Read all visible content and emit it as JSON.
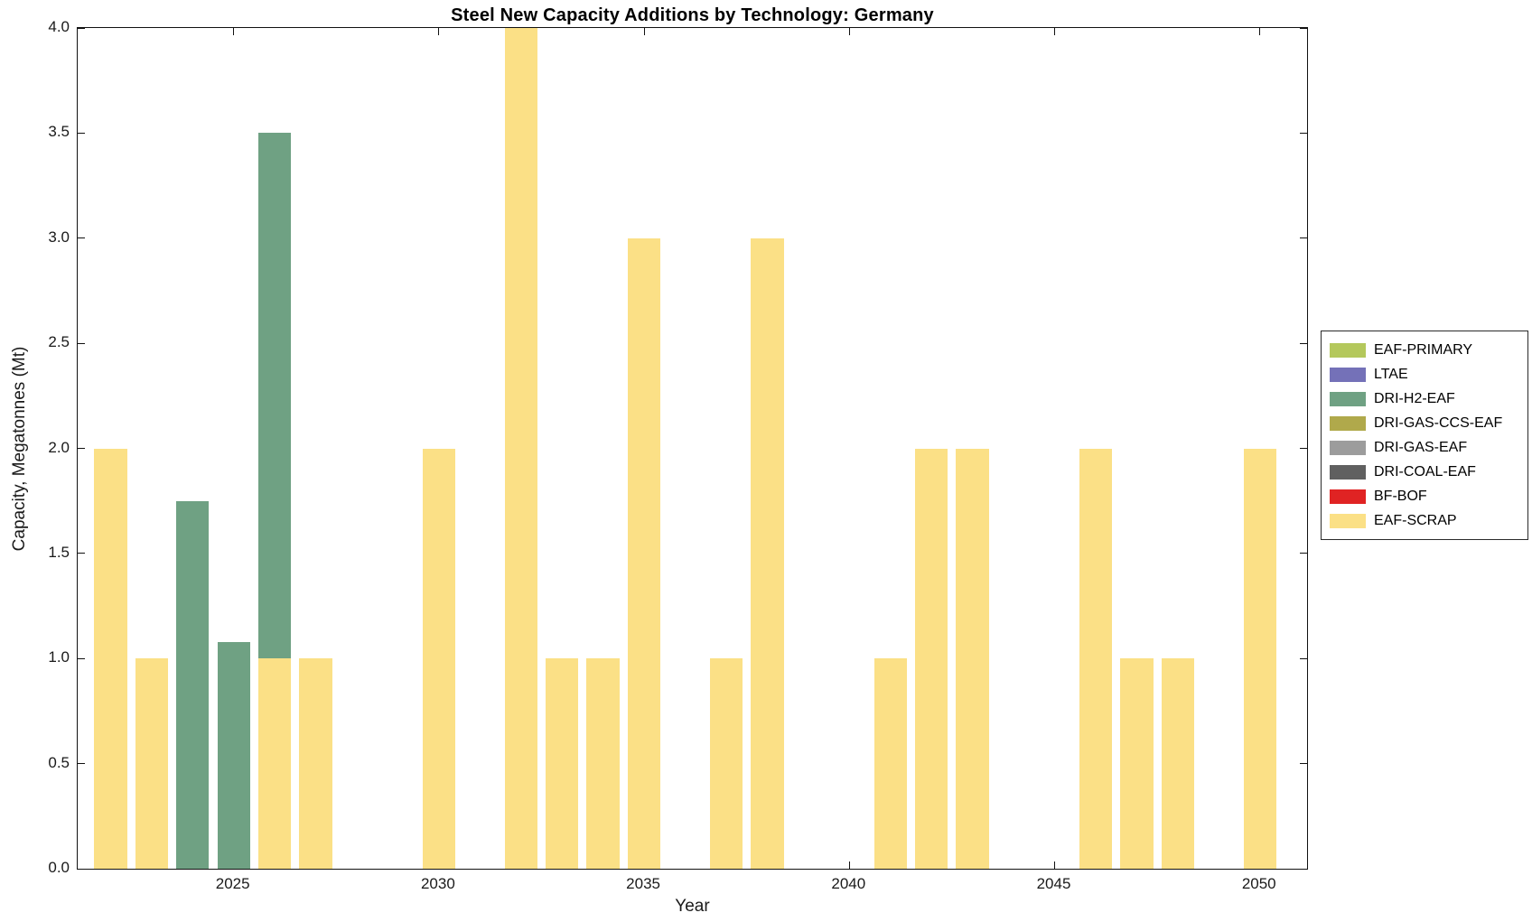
{
  "chart_data": {
    "type": "bar",
    "stacked": true,
    "title": "Steel New Capacity Additions by Technology: Germany",
    "xlabel": "Year",
    "ylabel": "Capacity, Megatonnes (Mt)",
    "xlim": [
      2021.2,
      2051.15
    ],
    "ylim": [
      0,
      4
    ],
    "bar_width": 0.8,
    "grid": false,
    "legend_position": "right-outside",
    "xticks": [
      2025,
      2030,
      2035,
      2040,
      2045,
      2050
    ],
    "xtick_labels": [
      "2025",
      "2030",
      "2035",
      "2040",
      "2045",
      "2050"
    ],
    "yticks": [
      0,
      0.5,
      1,
      1.5,
      2,
      2.5,
      3,
      3.5,
      4
    ],
    "ytick_labels": [
      "0.0",
      "0.5",
      "1.0",
      "1.5",
      "2.0",
      "2.5",
      "3.0",
      "3.5",
      "4.0"
    ],
    "legend": [
      {
        "label": "EAF-PRIMARY",
        "color": "#b4c85c"
      },
      {
        "label": "LTAE",
        "color": "#7471b8"
      },
      {
        "label": "DRI-H2-EAF",
        "color": "#6fa183"
      },
      {
        "label": "DRI-GAS-CCS-EAF",
        "color": "#b0a94b"
      },
      {
        "label": "DRI-GAS-EAF",
        "color": "#9c9c9c"
      },
      {
        "label": "DRI-COAL-EAF",
        "color": "#606060"
      },
      {
        "label": "BF-BOF",
        "color": "#e02323"
      },
      {
        "label": "EAF-SCRAP",
        "color": "#fbe086"
      }
    ],
    "bars": [
      {
        "year": 2022,
        "segments": [
          {
            "tech": "EAF-SCRAP",
            "value": 2.0
          }
        ]
      },
      {
        "year": 2023,
        "segments": [
          {
            "tech": "EAF-SCRAP",
            "value": 1.0
          }
        ]
      },
      {
        "year": 2024,
        "segments": [
          {
            "tech": "DRI-H2-EAF",
            "value": 1.75
          }
        ]
      },
      {
        "year": 2025,
        "segments": [
          {
            "tech": "DRI-H2-EAF",
            "value": 1.08
          }
        ]
      },
      {
        "year": 2026,
        "segments": [
          {
            "tech": "EAF-SCRAP",
            "value": 1.0
          },
          {
            "tech": "DRI-H2-EAF",
            "value": 2.5
          }
        ]
      },
      {
        "year": 2027,
        "segments": [
          {
            "tech": "EAF-SCRAP",
            "value": 1.0
          }
        ]
      },
      {
        "year": 2030,
        "segments": [
          {
            "tech": "EAF-SCRAP",
            "value": 2.0
          }
        ]
      },
      {
        "year": 2032,
        "segments": [
          {
            "tech": "EAF-SCRAP",
            "value": 4.0
          }
        ]
      },
      {
        "year": 2033,
        "segments": [
          {
            "tech": "EAF-SCRAP",
            "value": 1.0
          }
        ]
      },
      {
        "year": 2034,
        "segments": [
          {
            "tech": "EAF-SCRAP",
            "value": 1.0
          }
        ]
      },
      {
        "year": 2035,
        "segments": [
          {
            "tech": "EAF-SCRAP",
            "value": 3.0
          }
        ]
      },
      {
        "year": 2037,
        "segments": [
          {
            "tech": "EAF-SCRAP",
            "value": 1.0
          }
        ]
      },
      {
        "year": 2038,
        "segments": [
          {
            "tech": "EAF-SCRAP",
            "value": 3.0
          }
        ]
      },
      {
        "year": 2041,
        "segments": [
          {
            "tech": "EAF-SCRAP",
            "value": 1.0
          }
        ]
      },
      {
        "year": 2042,
        "segments": [
          {
            "tech": "EAF-SCRAP",
            "value": 2.0
          }
        ]
      },
      {
        "year": 2043,
        "segments": [
          {
            "tech": "EAF-SCRAP",
            "value": 2.0
          }
        ]
      },
      {
        "year": 2046,
        "segments": [
          {
            "tech": "EAF-SCRAP",
            "value": 2.0
          }
        ]
      },
      {
        "year": 2047,
        "segments": [
          {
            "tech": "EAF-SCRAP",
            "value": 1.0
          }
        ]
      },
      {
        "year": 2048,
        "segments": [
          {
            "tech": "EAF-SCRAP",
            "value": 1.0
          }
        ]
      },
      {
        "year": 2050,
        "segments": [
          {
            "tech": "EAF-SCRAP",
            "value": 2.0
          }
        ]
      }
    ]
  }
}
